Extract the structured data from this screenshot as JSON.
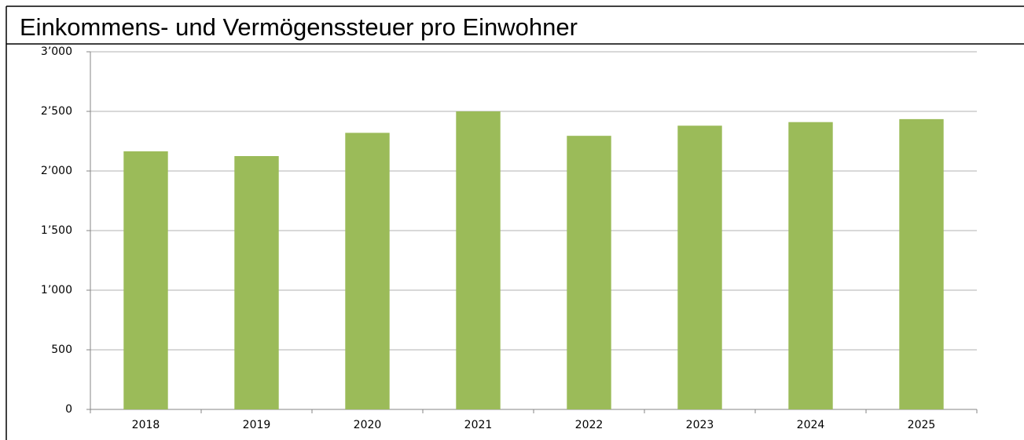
{
  "chart_data": {
    "type": "bar",
    "title": "Einkommens- und Vermögenssteuer pro Einwohner",
    "categories": [
      "2018",
      "2019",
      "2020",
      "2021",
      "2022",
      "2023",
      "2024",
      "2025"
    ],
    "values": [
      2165,
      2125,
      2320,
      2500,
      2295,
      2380,
      2410,
      2435
    ],
    "color": "#9bbb59",
    "ylim": [
      0,
      3000
    ],
    "yticks": [
      0,
      500,
      {
        "value": 1000,
        "label": "1’000"
      },
      {
        "value": 1500,
        "label": "1’500"
      },
      {
        "value": 2000,
        "label": "2’000"
      },
      {
        "value": 2500,
        "label": "2’500"
      },
      {
        "value": 3000,
        "label": "3’000"
      }
    ],
    "grid": true
  }
}
